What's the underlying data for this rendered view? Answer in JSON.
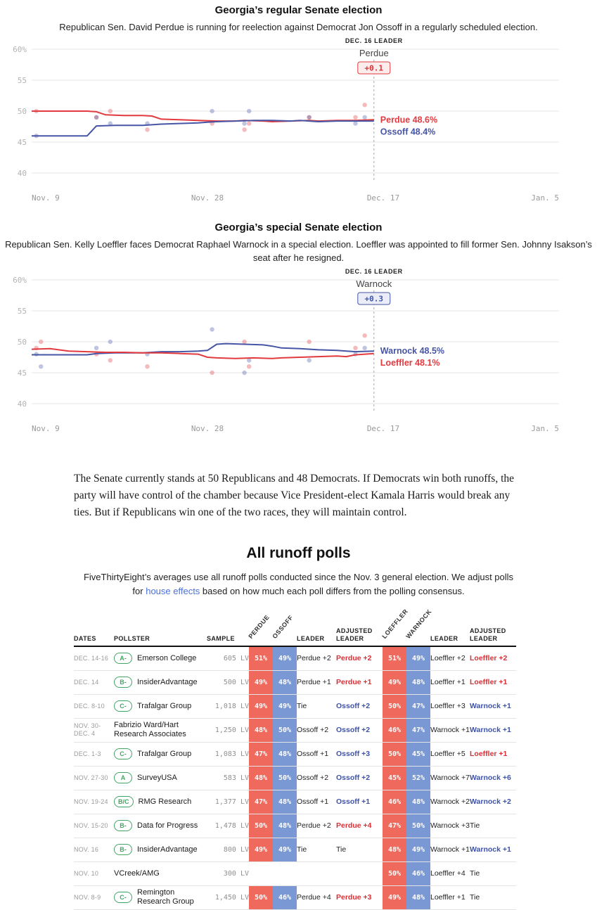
{
  "colors": {
    "rep_line": "#e23a3f",
    "rep_text": "#d93036",
    "rep_cell": "#f0695d",
    "rep_badge_bg": "#fdecec",
    "dem_line": "#4755a5",
    "dem_text": "#3e53a8",
    "dem_cell": "#7a98d4",
    "dem_badge_bg": "#eaedf8",
    "grade_green": "#44a564",
    "link_blue": "#4a71d8"
  },
  "chart_data": [
    {
      "type": "line",
      "title": "Georgia’s regular Senate election",
      "subtitle": "Republican Sen. David Perdue is running for reelection against Democrat Jon Ossoff in a regularly scheduled election.",
      "x_axis": {
        "start_date": "Nov. 9",
        "max_day": 57,
        "tick_days": [
          0,
          19,
          38,
          57
        ],
        "tick_labels": [
          "Nov. 9",
          "Nov. 28",
          "Dec. 17",
          "Jan. 5"
        ]
      },
      "y_axis": {
        "min": 40,
        "max": 60,
        "ticks": [
          60,
          55,
          50,
          45,
          40
        ],
        "tick_labels": [
          "60%",
          "55",
          "50",
          "45",
          "40"
        ],
        "unit": "percent"
      },
      "marker": {
        "day": 37,
        "label": "DEC. 16 LEADER",
        "leader": "Perdue",
        "margin": "+0.1"
      },
      "legend_position": "end-of-line",
      "grid": true,
      "series": [
        {
          "name": "Perdue",
          "party": "rep",
          "end_value": 48.6,
          "end_label": "Perdue 48.6%",
          "points": [
            [
              0,
              50
            ],
            [
              6,
              50
            ],
            [
              7,
              49.9
            ],
            [
              8,
              49.4
            ],
            [
              10,
              49.3
            ],
            [
              12,
              49.3
            ],
            [
              13,
              49.2
            ],
            [
              14,
              48.7
            ],
            [
              16,
              48.6
            ],
            [
              18,
              48.5
            ],
            [
              20,
              48.4
            ],
            [
              22,
              48.4
            ],
            [
              23,
              48.5
            ],
            [
              25,
              48.4
            ],
            [
              26,
              48.3
            ],
            [
              28,
              48.4
            ],
            [
              30,
              48.5
            ],
            [
              31,
              48.4
            ],
            [
              33,
              48.5
            ],
            [
              35,
              48.5
            ],
            [
              37,
              48.6
            ]
          ]
        },
        {
          "name": "Ossoff",
          "party": "dem",
          "end_value": 48.4,
          "end_label": "Ossoff 48.4%",
          "points": [
            [
              0,
              46
            ],
            [
              6,
              46
            ],
            [
              7,
              47.6
            ],
            [
              9,
              47.7
            ],
            [
              12,
              47.7
            ],
            [
              13,
              47.8
            ],
            [
              14,
              47.9
            ],
            [
              16,
              48
            ],
            [
              18,
              48.1
            ],
            [
              19,
              48.2
            ],
            [
              20,
              48.3
            ],
            [
              22,
              48.4
            ],
            [
              24,
              48.5
            ],
            [
              26,
              48.5
            ],
            [
              28,
              48.4
            ],
            [
              29,
              48.5
            ],
            [
              31,
              48.3
            ],
            [
              33,
              48.4
            ],
            [
              35,
              48.4
            ],
            [
              37,
              48.4
            ]
          ]
        }
      ],
      "scatter": [
        {
          "s": 0,
          "d": 0.5,
          "v": 50
        },
        {
          "s": 1,
          "d": 0.5,
          "v": 46
        },
        {
          "s": 0,
          "d": 7,
          "v": 49
        },
        {
          "s": 1,
          "d": 7,
          "v": 49
        },
        {
          "s": 0,
          "d": 8.5,
          "v": 50
        },
        {
          "s": 1,
          "d": 8.5,
          "v": 48
        },
        {
          "s": 0,
          "d": 12.5,
          "v": 47
        },
        {
          "s": 1,
          "d": 12.5,
          "v": 48
        },
        {
          "s": 0,
          "d": 19.5,
          "v": 48
        },
        {
          "s": 1,
          "d": 19.5,
          "v": 50
        },
        {
          "s": 0,
          "d": 23,
          "v": 47
        },
        {
          "s": 1,
          "d": 23,
          "v": 48
        },
        {
          "s": 0,
          "d": 23.5,
          "v": 48
        },
        {
          "s": 1,
          "d": 23.5,
          "v": 50
        },
        {
          "s": 0,
          "d": 30,
          "v": 49
        },
        {
          "s": 1,
          "d": 30,
          "v": 49
        },
        {
          "s": 0,
          "d": 35,
          "v": 49
        },
        {
          "s": 1,
          "d": 35,
          "v": 48
        },
        {
          "s": 0,
          "d": 36,
          "v": 51
        },
        {
          "s": 1,
          "d": 36,
          "v": 49
        }
      ]
    },
    {
      "type": "line",
      "title": "Georgia’s special Senate election",
      "subtitle": "Republican Sen. Kelly Loeffler faces Democrat Raphael Warnock in a special election. Loeffler was appointed to fill former Sen. Johnny Isakson’s seat after he resigned.",
      "x_axis": {
        "start_date": "Nov. 9",
        "max_day": 57,
        "tick_days": [
          0,
          19,
          38,
          57
        ],
        "tick_labels": [
          "Nov. 9",
          "Nov. 28",
          "Dec. 17",
          "Jan. 5"
        ]
      },
      "y_axis": {
        "min": 40,
        "max": 60,
        "ticks": [
          60,
          55,
          50,
          45,
          40
        ],
        "tick_labels": [
          "60%",
          "55",
          "50",
          "45",
          "40"
        ],
        "unit": "percent"
      },
      "marker": {
        "day": 37,
        "label": "DEC. 16 LEADER",
        "leader": "Warnock",
        "margin": "+0.3"
      },
      "legend_position": "end-of-line",
      "grid": true,
      "series": [
        {
          "name": "Warnock",
          "party": "dem",
          "end_value": 48.5,
          "end_label": "Warnock 48.5%",
          "points": [
            [
              0,
              47.9
            ],
            [
              6,
              47.9
            ],
            [
              7,
              48.1
            ],
            [
              9,
              48.2
            ],
            [
              12,
              48.2
            ],
            [
              14,
              48.4
            ],
            [
              16,
              48.4
            ],
            [
              18,
              48.5
            ],
            [
              19,
              48.6
            ],
            [
              20,
              49.6
            ],
            [
              21,
              49.7
            ],
            [
              23,
              49.6
            ],
            [
              25,
              49.5
            ],
            [
              26,
              49.3
            ],
            [
              27,
              49
            ],
            [
              29,
              48.9
            ],
            [
              31,
              48.7
            ],
            [
              33,
              48.6
            ],
            [
              35,
              48.4
            ],
            [
              37,
              48.5
            ]
          ]
        },
        {
          "name": "Loeffler",
          "party": "rep",
          "end_value": 48.1,
          "end_label": "Loeffler 48.1%",
          "points": [
            [
              0,
              48.8
            ],
            [
              2,
              48.9
            ],
            [
              4,
              48.5
            ],
            [
              6,
              48.4
            ],
            [
              8,
              48.3
            ],
            [
              10,
              48.3
            ],
            [
              12,
              48.2
            ],
            [
              14,
              48.2
            ],
            [
              16,
              48.1
            ],
            [
              18,
              48
            ],
            [
              19,
              47.5
            ],
            [
              20,
              47.4
            ],
            [
              22,
              47.3
            ],
            [
              24,
              47.4
            ],
            [
              26,
              47.3
            ],
            [
              27,
              47.4
            ],
            [
              29,
              47.5
            ],
            [
              31,
              47.6
            ],
            [
              33,
              47.7
            ],
            [
              34,
              47.6
            ],
            [
              35,
              47.9
            ],
            [
              37,
              48.1
            ]
          ]
        }
      ],
      "scatter": [
        {
          "s": 1,
          "d": 0.5,
          "v": 49
        },
        {
          "s": 0,
          "d": 0.5,
          "v": 48
        },
        {
          "s": 1,
          "d": 1,
          "v": 50
        },
        {
          "s": 0,
          "d": 1,
          "v": 46
        },
        {
          "s": 1,
          "d": 7,
          "v": 48
        },
        {
          "s": 0,
          "d": 7,
          "v": 49
        },
        {
          "s": 1,
          "d": 8.5,
          "v": 47
        },
        {
          "s": 0,
          "d": 8.5,
          "v": 50
        },
        {
          "s": 1,
          "d": 12.5,
          "v": 46
        },
        {
          "s": 0,
          "d": 12.5,
          "v": 48
        },
        {
          "s": 1,
          "d": 19.5,
          "v": 45
        },
        {
          "s": 0,
          "d": 19.5,
          "v": 52
        },
        {
          "s": 1,
          "d": 23,
          "v": 50
        },
        {
          "s": 0,
          "d": 23,
          "v": 45
        },
        {
          "s": 1,
          "d": 23.5,
          "v": 46
        },
        {
          "s": 0,
          "d": 23.5,
          "v": 47
        },
        {
          "s": 1,
          "d": 30,
          "v": 50
        },
        {
          "s": 0,
          "d": 30,
          "v": 47
        },
        {
          "s": 1,
          "d": 35,
          "v": 49
        },
        {
          "s": 0,
          "d": 35,
          "v": 48
        },
        {
          "s": 1,
          "d": 36,
          "v": 51
        },
        {
          "s": 0,
          "d": 36,
          "v": 49
        }
      ]
    }
  ],
  "note": {
    "text": "The Senate currently stands at 50 Republicans and 48 Democrats. If Democrats win both runoffs, the party will have control of the chamber because Vice President-elect Kamala Harris would break any ties. But if Republicans win one of the two races, they will maintain control."
  },
  "polls_section": {
    "title": "All runoff polls",
    "intro_before": "FiveThirtyEight’s averages use all runoff polls conducted since the Nov. 3 general election. We adjust polls for ",
    "intro_link": "house effects",
    "intro_after": " based on how much each poll differs from the polling consensus.",
    "table": {
      "headers": {
        "dates": "DATES",
        "pollster": "POLLSTER",
        "sample": "SAMPLE",
        "perdue": "PERDUE",
        "ossoff": "OSSOFF",
        "leader": "LEADER",
        "adjusted_leader": "ADJUSTED\nLEADER",
        "loeffler": "LOEFFLER",
        "warnock": "WARNOCK"
      },
      "rows": [
        {
          "dates": "DEC. 14-16",
          "grade": "A-",
          "pollster": "Emerson College",
          "sample": "605 LV",
          "perdue": 51,
          "ossoff": 49,
          "leader_reg": "Perdue +2",
          "adj_reg": {
            "text": "Perdue +2",
            "party": "rep"
          },
          "loeffler": 51,
          "warnock": 49,
          "leader_spec": "Loeffler +2",
          "adj_spec": {
            "text": "Loeffler +2",
            "party": "rep"
          }
        },
        {
          "dates": "DEC. 14",
          "grade": "B-",
          "pollster": "InsiderAdvantage",
          "sample": "500 LV",
          "perdue": 49,
          "ossoff": 48,
          "leader_reg": "Perdue +1",
          "adj_reg": {
            "text": "Perdue +1",
            "party": "rep"
          },
          "loeffler": 49,
          "warnock": 48,
          "leader_spec": "Loeffler +1",
          "adj_spec": {
            "text": "Loeffler +1",
            "party": "rep"
          }
        },
        {
          "dates": "DEC. 8-10",
          "grade": "C-",
          "pollster": "Trafalgar Group",
          "sample": "1,018 LV",
          "perdue": 49,
          "ossoff": 49,
          "leader_reg": "Tie",
          "adj_reg": {
            "text": "Ossoff +2",
            "party": "dem"
          },
          "loeffler": 50,
          "warnock": 47,
          "leader_spec": "Loeffler +3",
          "adj_spec": {
            "text": "Warnock +1",
            "party": "dem"
          }
        },
        {
          "dates": "NOV. 30-\nDEC. 4",
          "grade": null,
          "pollster": "Fabrizio Ward/Hart Research Associates",
          "sample": "1,250 LV",
          "perdue": 48,
          "ossoff": 50,
          "leader_reg": "Ossoff +2",
          "adj_reg": {
            "text": "Ossoff +2",
            "party": "dem"
          },
          "loeffler": 46,
          "warnock": 47,
          "leader_spec": "Warnock +1",
          "adj_spec": {
            "text": "Warnock +1",
            "party": "dem"
          }
        },
        {
          "dates": "DEC. 1-3",
          "grade": "C-",
          "pollster": "Trafalgar Group",
          "sample": "1,083 LV",
          "perdue": 47,
          "ossoff": 48,
          "leader_reg": "Ossoff +1",
          "adj_reg": {
            "text": "Ossoff +3",
            "party": "dem"
          },
          "loeffler": 50,
          "warnock": 45,
          "leader_spec": "Loeffler +5",
          "adj_spec": {
            "text": "Loeffler +1",
            "party": "rep"
          }
        },
        {
          "dates": "NOV. 27-30",
          "grade": "A",
          "pollster": "SurveyUSA",
          "sample": "583 LV",
          "perdue": 48,
          "ossoff": 50,
          "leader_reg": "Ossoff +2",
          "adj_reg": {
            "text": "Ossoff +2",
            "party": "dem"
          },
          "loeffler": 45,
          "warnock": 52,
          "leader_spec": "Warnock +7",
          "adj_spec": {
            "text": "Warnock +6",
            "party": "dem"
          }
        },
        {
          "dates": "NOV. 19-24",
          "grade": "B/C",
          "pollster": "RMG Research",
          "sample": "1,377 LV",
          "perdue": 47,
          "ossoff": 48,
          "leader_reg": "Ossoff +1",
          "adj_reg": {
            "text": "Ossoff +1",
            "party": "dem"
          },
          "loeffler": 46,
          "warnock": 48,
          "leader_spec": "Warnock +2",
          "adj_spec": {
            "text": "Warnock +2",
            "party": "dem"
          }
        },
        {
          "dates": "NOV. 15-20",
          "grade": "B-",
          "pollster": "Data for Progress",
          "sample": "1,478 LV",
          "perdue": 50,
          "ossoff": 48,
          "leader_reg": "Perdue +2",
          "adj_reg": {
            "text": "Perdue +4",
            "party": "rep"
          },
          "loeffler": 47,
          "warnock": 50,
          "leader_spec": "Warnock +3",
          "adj_spec": {
            "text": "Tie",
            "party": "tie"
          }
        },
        {
          "dates": "NOV. 16",
          "grade": "B-",
          "pollster": "InsiderAdvantage",
          "sample": "800 LV",
          "perdue": 49,
          "ossoff": 49,
          "leader_reg": "Tie",
          "adj_reg": {
            "text": "Tie",
            "party": "tie"
          },
          "loeffler": 48,
          "warnock": 49,
          "leader_spec": "Warnock +1",
          "adj_spec": {
            "text": "Warnock +1",
            "party": "dem"
          }
        },
        {
          "dates": "NOV. 10",
          "grade": null,
          "pollster": "VCreek/AMG",
          "sample": "300 LV",
          "perdue": null,
          "ossoff": null,
          "leader_reg": "",
          "adj_reg": null,
          "loeffler": 50,
          "warnock": 46,
          "leader_spec": "Loeffler +4",
          "adj_spec": {
            "text": "Tie",
            "party": "tie"
          }
        },
        {
          "dates": "NOV. 8-9",
          "grade": "C-",
          "pollster": "Remington Research Group",
          "sample": "1,450 LV",
          "perdue": 50,
          "ossoff": 46,
          "leader_reg": "Perdue +4",
          "adj_reg": {
            "text": "Perdue +3",
            "party": "rep"
          },
          "loeffler": 49,
          "warnock": 48,
          "leader_spec": "Loeffler +1",
          "adj_spec": {
            "text": "Tie",
            "party": "tie"
          }
        }
      ]
    }
  }
}
